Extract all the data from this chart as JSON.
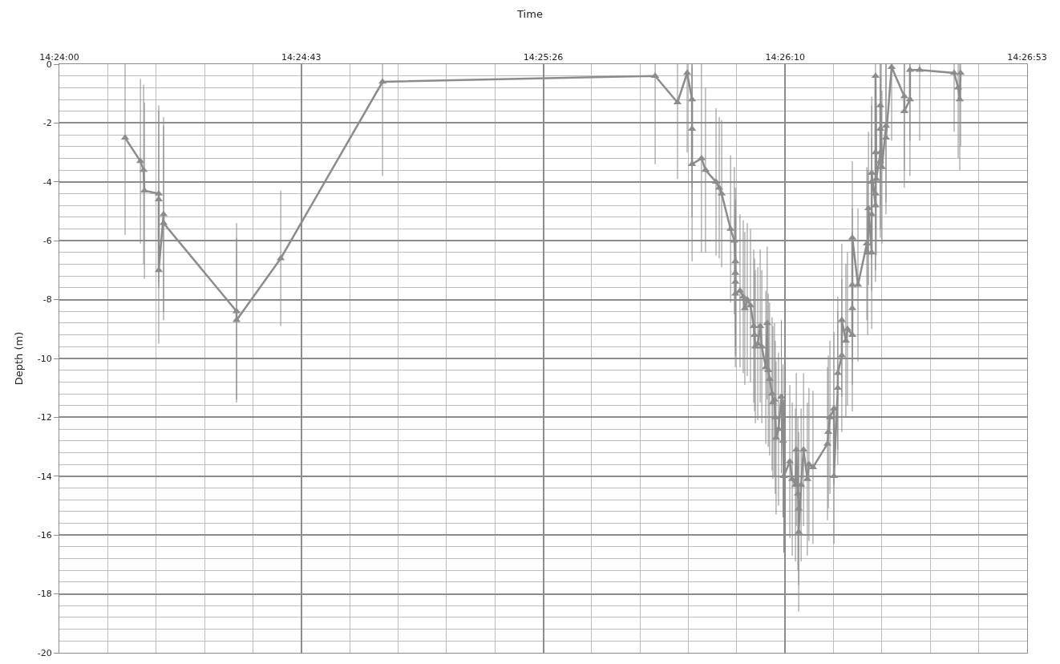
{
  "chart_data": {
    "type": "line",
    "title": "Time",
    "ylabel": "Depth (m)",
    "marker": "triangle",
    "line_style": "solid",
    "grid": true,
    "xlim": [
      14.4,
      14.448
    ],
    "xticks": [
      {
        "value": 14.4,
        "label": "14:24:00"
      },
      {
        "value": 14.412,
        "label": "14:24:43"
      },
      {
        "value": 14.424,
        "label": "14:25:26"
      },
      {
        "value": 14.436,
        "label": "14:26:10"
      },
      {
        "value": 14.448,
        "label": "14:26:53"
      }
    ],
    "ylim": [
      -20,
      0
    ],
    "yticks": [
      0,
      -2,
      -4,
      -6,
      -8,
      -10,
      -12,
      -14,
      -16,
      -18,
      -20
    ],
    "series": [
      {
        "color": "#8c8c8c",
        "x": [
          14.40326,
          14.40402,
          14.40418,
          14.40422,
          14.40493,
          14.40493,
          14.40493,
          14.40517,
          14.40517,
          14.40879,
          14.40879,
          14.41098,
          14.41603,
          14.42955,
          14.43066,
          14.43114,
          14.43138,
          14.43138,
          14.43138,
          14.43185,
          14.43205,
          14.43257,
          14.43273,
          14.43285,
          14.43329,
          14.43348,
          14.43353,
          14.43353,
          14.43353,
          14.43353,
          14.43376,
          14.43392,
          14.434,
          14.43412,
          14.43428,
          14.43444,
          14.43448,
          14.43452,
          14.43464,
          14.43476,
          14.43484,
          14.43504,
          14.43511,
          14.43516,
          14.43523,
          14.43535,
          14.43539,
          14.43547,
          14.43551,
          14.43555,
          14.43567,
          14.43581,
          14.43589,
          14.43593,
          14.43623,
          14.43635,
          14.43651,
          14.43655,
          14.43663,
          14.43667,
          14.43667,
          14.43679,
          14.43691,
          14.4371,
          14.43718,
          14.43738,
          14.4381,
          14.43814,
          14.43822,
          14.43842,
          14.43842,
          14.43861,
          14.43861,
          14.43881,
          14.43881,
          14.43901,
          14.43909,
          14.43933,
          14.43933,
          14.43933,
          14.43933,
          14.43961,
          14.44005,
          14.44009,
          14.44013,
          14.44029,
          14.44029,
          14.44029,
          14.44029,
          14.44048,
          14.44048,
          14.44048,
          14.44048,
          14.44052,
          14.44072,
          14.44072,
          14.44072,
          14.44072,
          14.4408,
          14.441,
          14.441,
          14.44128,
          14.44191,
          14.44191,
          14.44219,
          14.44219,
          14.44267,
          14.44438,
          14.44458,
          14.44466,
          14.4447
        ],
        "values": [
          -2.5,
          -3.3,
          -3.6,
          -4.3,
          -4.4,
          -4.6,
          -7.0,
          -5.1,
          -5.4,
          -8.4,
          -8.7,
          -6.6,
          -0.6,
          -0.4,
          -1.3,
          -0.3,
          -1.2,
          -2.2,
          -3.4,
          -3.2,
          -3.6,
          -4.0,
          -4.2,
          -4.4,
          -5.6,
          -6.0,
          -6.7,
          -7.1,
          -7.4,
          -7.8,
          -7.7,
          -7.9,
          -8.3,
          -8.0,
          -8.2,
          -8.9,
          -9.2,
          -9.6,
          -9.5,
          -8.9,
          -9.6,
          -10.3,
          -8.8,
          -10.4,
          -10.7,
          -11.2,
          -11.5,
          -11.4,
          -12.0,
          -12.7,
          -12.4,
          -11.3,
          -12.8,
          -14.0,
          -13.5,
          -14.1,
          -14.3,
          -13.1,
          -14.6,
          -15.1,
          -15.9,
          -14.3,
          -13.1,
          -14.1,
          -13.6,
          -13.7,
          -12.9,
          -12.5,
          -12.0,
          -11.7,
          -14.0,
          -11.0,
          -10.5,
          -9.9,
          -8.7,
          -9.4,
          -9.0,
          -9.2,
          -8.3,
          -7.5,
          -5.9,
          -7.5,
          -6.1,
          -6.4,
          -4.9,
          -6.4,
          -5.1,
          -4.0,
          -3.7,
          -4.8,
          -4.4,
          -3.0,
          -0.4,
          -3.9,
          -3.0,
          -3.3,
          -2.2,
          -1.4,
          -3.5,
          -2.1,
          -2.5,
          -0.1,
          -1.1,
          -1.6,
          -1.2,
          -0.2,
          -0.2,
          -0.3,
          -0.8,
          -1.2,
          -0.3
        ],
        "errors": [
          [
            -5.8,
            0
          ],
          [
            -6.1,
            -0.5
          ],
          [
            -6.8,
            -0.7
          ],
          3,
          3,
          3,
          2.5,
          3.3,
          3.3,
          3,
          2.8,
          2.3,
          [
            -3.8,
            0
          ],
          [
            -3.4,
            0
          ],
          [
            -3.9,
            0
          ],
          [
            -3.0,
            0
          ],
          [
            -4.2,
            0
          ],
          [
            -5.2,
            0
          ],
          3.3,
          [
            -6.4,
            0
          ],
          2.8,
          2.5,
          2.4,
          2.5,
          2.5,
          2.5,
          2.5,
          2.5,
          2.5,
          2.5,
          2.6,
          2.6,
          2.6,
          2.6,
          2.6,
          2.6,
          2.6,
          2.6,
          2.6,
          2.6,
          2.6,
          2.6,
          2.6,
          2.6,
          2.6,
          2.6,
          2.6,
          2.6,
          2.6,
          2.6,
          2.6,
          2.6,
          2.6,
          2.6,
          2.6,
          2.6,
          2.6,
          2.6,
          2.6,
          2.6,
          2.7,
          2.6,
          2.6,
          2.6,
          2.6,
          2.6,
          2.6,
          2.6,
          2.6,
          2.6,
          2.3,
          2.6,
          2.6,
          2.6,
          2.6,
          2.6,
          2.6,
          2.6,
          2.6,
          2.6,
          2.6,
          2.6,
          2.6,
          2.8,
          2.6,
          2.6,
          2.6,
          2.6,
          2.6,
          2.6,
          2.6,
          2.6,
          [
            -2.8,
            0
          ],
          2.6,
          2.6,
          2.6,
          2.6,
          [
            -4.0,
            0
          ],
          2.6,
          2.6,
          2.6,
          [
            -2.6,
            0
          ],
          [
            -3.6,
            0
          ],
          [
            -4.2,
            0
          ],
          [
            -3.8,
            0
          ],
          [
            -2.6,
            0
          ],
          [
            -2.6,
            0
          ],
          [
            -2.3,
            0
          ],
          [
            -3.2,
            0
          ],
          [
            -3.6,
            0
          ],
          [
            -2.8,
            0
          ]
        ]
      }
    ]
  }
}
